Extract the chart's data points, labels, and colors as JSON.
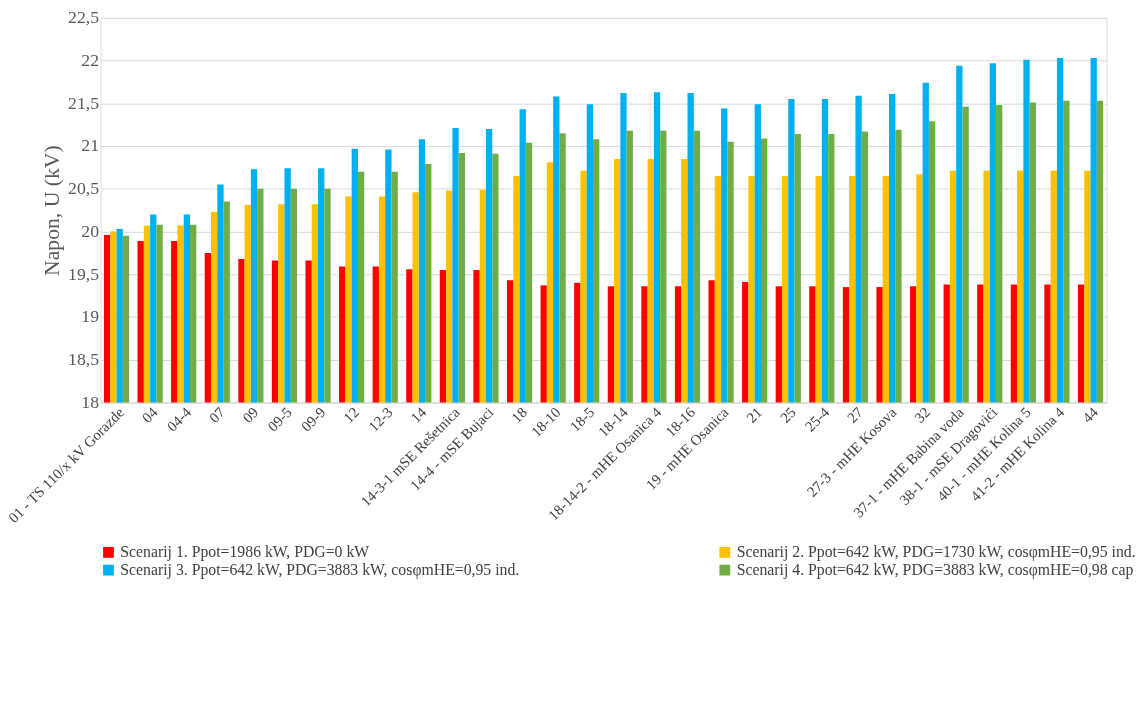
{
  "chart_data": {
    "type": "bar",
    "ylabel": "Napon, U (kV)",
    "categories": [
      "01 - TS 110/x kV Gorazde",
      "04",
      "04-4",
      "07",
      "09",
      "09-5",
      "09-9",
      "12",
      "12-3",
      "14",
      "14-3-1 mSE Rešetnica",
      "14-4 - mSE Bujaci",
      "18",
      "18-10",
      "18-5",
      "18-14",
      "18-14-2 - mHE Osanica 4",
      "18-16",
      "19 - mHE Osanica",
      "21",
      "25",
      "25-4",
      "27",
      "27-3 - mHE Kosova",
      "32",
      "37-1 - mHE Babina voda",
      "38-1 - mSE Dragovići",
      "40-1 - mHE Kolina 5",
      "41-2 - mHE Kolina 4",
      "44"
    ],
    "series": [
      {
        "name": "Scenarij 1. Ppot=1986 kW, PDG=0 kW",
        "color": "#ff0000",
        "values": [
          19.96,
          19.89,
          19.89,
          19.75,
          19.68,
          19.66,
          19.66,
          19.59,
          19.59,
          19.56,
          19.55,
          19.55,
          19.43,
          19.37,
          19.4,
          19.36,
          19.36,
          19.36,
          19.43,
          19.41,
          19.36,
          19.36,
          19.35,
          19.35,
          19.36,
          19.38,
          19.38,
          19.38,
          19.38,
          19.38
        ]
      },
      {
        "name": "Scenarij 2. Ppot=642 kW, PDG=1730 kW, cosφmHE=0,95 ind.",
        "color": "#ffc000",
        "values": [
          20.0,
          20.07,
          20.07,
          20.23,
          20.31,
          20.32,
          20.32,
          20.41,
          20.41,
          20.46,
          20.48,
          20.49,
          20.65,
          20.81,
          20.71,
          20.85,
          20.85,
          20.85,
          20.65,
          20.65,
          20.65,
          20.65,
          20.65,
          20.65,
          20.67,
          20.71,
          20.71,
          20.71,
          20.71,
          20.71
        ]
      },
      {
        "name": "Scenarij 3. Ppot=642 kW, PDG=3883 kW, cosφmHE=0,95 ind.",
        "color": "#00b0f0",
        "values": [
          20.03,
          20.2,
          20.2,
          20.55,
          20.73,
          20.74,
          20.74,
          20.97,
          20.96,
          21.08,
          21.21,
          21.2,
          21.43,
          21.58,
          21.49,
          21.62,
          21.63,
          21.62,
          21.44,
          21.49,
          21.55,
          21.55,
          21.59,
          21.61,
          21.74,
          21.94,
          21.97,
          22.01,
          22.03,
          22.03
        ]
      },
      {
        "name": "Scenarij 4. Ppot=642 kW, PDG=3883 kW, cosφmHE=0,98 cap",
        "color": "#70ad47",
        "values": [
          19.95,
          20.08,
          20.08,
          20.35,
          20.5,
          20.5,
          20.5,
          20.7,
          20.7,
          20.79,
          20.92,
          20.91,
          21.04,
          21.15,
          21.08,
          21.18,
          21.18,
          21.18,
          21.05,
          21.09,
          21.14,
          21.14,
          21.17,
          21.19,
          21.29,
          21.46,
          21.48,
          21.51,
          21.53,
          21.53
        ]
      }
    ],
    "ylim": [
      18,
      22.5
    ],
    "yticks": [
      18,
      {
        "value": 18.5,
        "label": "18,5"
      },
      19,
      {
        "value": 19.5,
        "label": "19,5"
      },
      20,
      {
        "value": 20.5,
        "label": "20,5"
      },
      21,
      {
        "value": 21.5,
        "label": "21,5"
      },
      22,
      {
        "value": 22.5,
        "label": "22,5"
      }
    ],
    "grid": "y",
    "legend": "bottom"
  }
}
